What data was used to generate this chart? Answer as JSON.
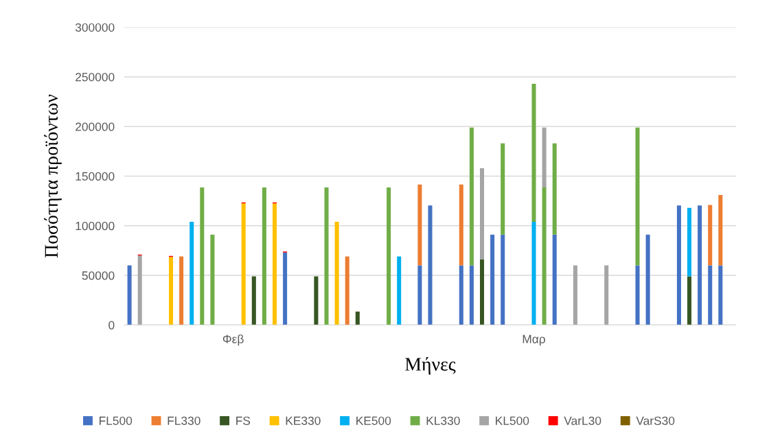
{
  "chart_data": {
    "type": "bar",
    "stacked": true,
    "xlabel": "Μήνες",
    "ylabel": "Ποσότητα προϊόντων",
    "categories": [
      null,
      null,
      null,
      null,
      null,
      null,
      null,
      null,
      null,
      null,
      "Φεβ",
      null,
      null,
      null,
      null,
      null,
      null,
      null,
      null,
      null,
      null,
      null,
      null,
      null,
      null,
      null,
      null,
      null,
      null,
      null,
      null,
      null,
      null,
      null,
      null,
      null,
      null,
      null,
      null,
      "Μαρ",
      null,
      null,
      null,
      null,
      null,
      null,
      null,
      null,
      null,
      null,
      null,
      null,
      null,
      null,
      null,
      null,
      null,
      null,
      null
    ],
    "ylim": [
      0,
      300000
    ],
    "yticks": [
      0,
      50000,
      100000,
      150000,
      200000,
      250000,
      300000
    ],
    "grid": "y",
    "legend": "bottom",
    "series": [
      {
        "name": "FL500",
        "color": "#4472c4",
        "values": [
          60000,
          null,
          null,
          null,
          null,
          null,
          null,
          null,
          null,
          null,
          null,
          null,
          null,
          null,
          null,
          73000,
          null,
          null,
          null,
          null,
          null,
          null,
          null,
          null,
          null,
          null,
          null,
          null,
          60000,
          120500,
          null,
          null,
          60000,
          60000,
          null,
          91000,
          91000,
          null,
          null,
          null,
          null,
          91000,
          null,
          null,
          null,
          null,
          null,
          null,
          null,
          60000,
          91000,
          null,
          null,
          120500,
          null,
          120500,
          60000,
          60000,
          null
        ]
      },
      {
        "name": "FL330",
        "color": "#ed7d31",
        "values": [
          null,
          null,
          null,
          null,
          null,
          69000,
          null,
          null,
          null,
          null,
          null,
          null,
          null,
          null,
          null,
          null,
          null,
          null,
          null,
          null,
          null,
          69000,
          null,
          null,
          null,
          null,
          null,
          null,
          81500,
          null,
          null,
          null,
          81500,
          null,
          null,
          null,
          null,
          null,
          null,
          null,
          null,
          null,
          null,
          null,
          null,
          null,
          null,
          null,
          null,
          null,
          null,
          null,
          null,
          null,
          null,
          null,
          61000,
          71000,
          null
        ]
      },
      {
        "name": "FS",
        "color": "#375623",
        "values": [
          null,
          null,
          null,
          null,
          null,
          null,
          null,
          null,
          null,
          null,
          null,
          null,
          49000,
          null,
          null,
          null,
          null,
          null,
          49000,
          null,
          null,
          null,
          13500,
          null,
          null,
          null,
          null,
          null,
          null,
          null,
          null,
          null,
          null,
          null,
          66000,
          null,
          null,
          null,
          null,
          null,
          null,
          null,
          null,
          null,
          null,
          null,
          null,
          null,
          null,
          null,
          null,
          null,
          null,
          null,
          49000,
          null,
          null,
          null,
          null
        ]
      },
      {
        "name": "KE330",
        "color": "#ffc000",
        "values": [
          null,
          null,
          null,
          null,
          68500,
          null,
          null,
          null,
          null,
          null,
          null,
          122500,
          null,
          null,
          122500,
          null,
          null,
          null,
          null,
          null,
          104000,
          null,
          null,
          null,
          null,
          null,
          null,
          null,
          null,
          null,
          null,
          null,
          null,
          null,
          null,
          null,
          null,
          null,
          null,
          null,
          null,
          null,
          null,
          null,
          null,
          null,
          null,
          null,
          null,
          null,
          null,
          null,
          null,
          null,
          null,
          null,
          null,
          null,
          null
        ]
      },
      {
        "name": "KE500",
        "color": "#00b0f0",
        "values": [
          null,
          null,
          null,
          null,
          null,
          null,
          104000,
          null,
          null,
          null,
          null,
          null,
          null,
          null,
          null,
          null,
          null,
          null,
          null,
          null,
          null,
          null,
          null,
          null,
          null,
          null,
          69000,
          null,
          null,
          null,
          null,
          null,
          null,
          null,
          null,
          null,
          null,
          null,
          null,
          104000,
          null,
          null,
          null,
          null,
          null,
          null,
          null,
          null,
          null,
          null,
          null,
          null,
          null,
          null,
          69000,
          null,
          null,
          null,
          null
        ]
      },
      {
        "name": "KL330",
        "color": "#70ad47",
        "values": [
          null,
          null,
          null,
          null,
          null,
          null,
          null,
          138500,
          91000,
          null,
          null,
          null,
          null,
          138500,
          null,
          null,
          null,
          null,
          null,
          138500,
          null,
          null,
          null,
          null,
          null,
          138500,
          null,
          null,
          null,
          null,
          null,
          null,
          null,
          139000,
          null,
          null,
          92000,
          null,
          null,
          139000,
          138500,
          92000,
          null,
          null,
          null,
          null,
          null,
          null,
          null,
          139000,
          null,
          null,
          null,
          null,
          null,
          null,
          null,
          null,
          null
        ]
      },
      {
        "name": "KL500",
        "color": "#a5a5a5",
        "values": [
          null,
          70000,
          null,
          null,
          null,
          null,
          null,
          null,
          null,
          null,
          null,
          null,
          null,
          null,
          null,
          null,
          null,
          null,
          null,
          null,
          null,
          null,
          null,
          null,
          null,
          null,
          null,
          null,
          null,
          null,
          null,
          null,
          null,
          null,
          92000,
          null,
          null,
          null,
          null,
          null,
          60500,
          null,
          null,
          60000,
          null,
          null,
          60000,
          null,
          null,
          null,
          null,
          null,
          null,
          null,
          null,
          null,
          null,
          null,
          null
        ]
      },
      {
        "name": "VarL30",
        "color": "#ff0000",
        "values": [
          null,
          1000,
          null,
          null,
          1000,
          null,
          null,
          null,
          null,
          null,
          null,
          1000,
          null,
          null,
          1000,
          1000,
          null,
          null,
          null,
          null,
          null,
          null,
          null,
          null,
          null,
          null,
          null,
          null,
          null,
          null,
          null,
          null,
          null,
          null,
          null,
          null,
          null,
          null,
          null,
          null,
          null,
          null,
          null,
          null,
          null,
          null,
          null,
          null,
          null,
          null,
          null,
          null,
          null,
          null,
          null,
          null,
          null,
          null,
          null
        ]
      },
      {
        "name": "VarS30",
        "color": "#7f6000",
        "values": [
          null,
          null,
          null,
          null,
          null,
          null,
          null,
          null,
          null,
          null,
          null,
          null,
          null,
          null,
          null,
          null,
          null,
          null,
          null,
          null,
          null,
          null,
          null,
          null,
          null,
          null,
          null,
          null,
          null,
          null,
          null,
          null,
          null,
          null,
          null,
          null,
          null,
          null,
          null,
          null,
          null,
          null,
          null,
          null,
          null,
          null,
          null,
          null,
          null,
          null,
          null,
          null,
          null,
          null,
          null,
          null,
          null,
          null,
          null
        ]
      }
    ]
  }
}
